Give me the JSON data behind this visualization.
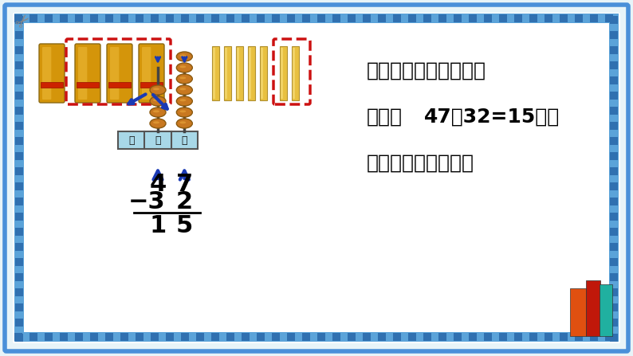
{
  "bg_color": "#e8f4f8",
  "border_color": "#4a90d9",
  "inner_bg": "#ffffff",
  "text_line1": "对照小棒图和计数器说",
  "text_line2": "一说，",
  "text_line2_bold": "47－32=15的每",
  "text_line3": "一步是怎样得来的？",
  "math_row1": [
    "4",
    "7"
  ],
  "math_row2": [
    "−3",
    "2"
  ],
  "math_row3": [
    "1",
    "5"
  ],
  "abacus_label": [
    "百",
    "十",
    "个"
  ],
  "dashed_box1_color": "#cc0000",
  "arrow_color": "#1a3ab5",
  "stick_tens_color": "#d4a017",
  "stick_ones_color": "#e8b84b"
}
